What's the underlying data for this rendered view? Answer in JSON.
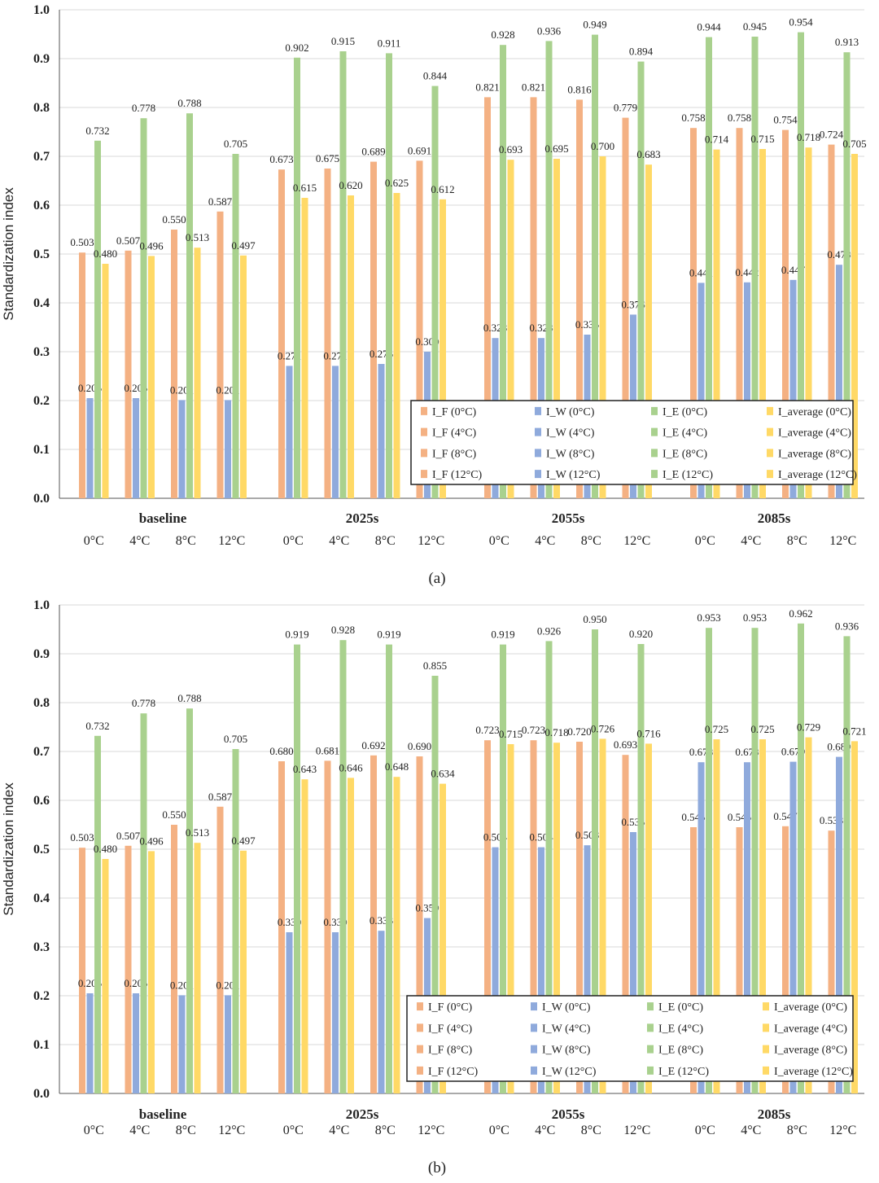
{
  "colors": {
    "I_F": "#F4B183",
    "I_W": "#8FAADC",
    "I_E": "#A9D18E",
    "I_average": "#FFD966",
    "grid": "#d9d9d9",
    "axis": "#555555"
  },
  "legend_labels": [
    [
      "I_F (0°C)",
      "I_W (0°C)",
      "I_E (0°C)",
      "I_average (0°C)"
    ],
    [
      "I_F (4°C)",
      "I_W (4°C)",
      "I_E (4°C)",
      "I_average (4°C)"
    ],
    [
      "I_F (8°C)",
      "I_W (8°C)",
      "I_E (8°C)",
      "I_average (8°C)"
    ],
    [
      "I_F (12°C)",
      "I_W (12°C)",
      "I_E (12°C)",
      "I_average (12°C)"
    ]
  ],
  "chart_data": [
    {
      "type": "bar",
      "caption": "(a)",
      "ylabel": "Standardization index",
      "ylim": [
        0,
        1.0
      ],
      "yticks": [
        "0.0",
        "0.1",
        "0.2",
        "0.3",
        "0.4",
        "0.5",
        "0.6",
        "0.7",
        "0.8",
        "0.9",
        "1.0"
      ],
      "grid": true,
      "legend_position": "bottom-right",
      "groups": [
        "baseline",
        "2025s",
        "2055s",
        "2085s"
      ],
      "temperatures": [
        "0°C",
        "4°C",
        "8°C",
        "12°C"
      ],
      "series": [
        {
          "name": "I_F",
          "values": [
            [
              0.503,
              0.507,
              0.55,
              0.587
            ],
            [
              0.673,
              0.675,
              0.689,
              0.691
            ],
            [
              0.821,
              0.821,
              0.816,
              0.779
            ],
            [
              0.758,
              0.758,
              0.754,
              0.724
            ]
          ]
        },
        {
          "name": "I_W",
          "values": [
            [
              0.205,
              0.205,
              0.201,
              0.201
            ],
            [
              0.271,
              0.271,
              0.275,
              0.3
            ],
            [
              0.328,
              0.328,
              0.335,
              0.376
            ],
            [
              0.441,
              0.442,
              0.447,
              0.478
            ]
          ]
        },
        {
          "name": "I_E",
          "values": [
            [
              0.732,
              0.778,
              0.788,
              0.705
            ],
            [
              0.902,
              0.915,
              0.911,
              0.844
            ],
            [
              0.928,
              0.936,
              0.949,
              0.894
            ],
            [
              0.944,
              0.945,
              0.954,
              0.913
            ]
          ]
        },
        {
          "name": "I_average",
          "values": [
            [
              0.48,
              0.496,
              0.513,
              0.497
            ],
            [
              0.615,
              0.62,
              0.625,
              0.612
            ],
            [
              0.693,
              0.695,
              0.7,
              0.683
            ],
            [
              0.714,
              0.715,
              0.718,
              0.705
            ]
          ]
        }
      ]
    },
    {
      "type": "bar",
      "caption": "(b)",
      "ylabel": "Standardization index",
      "ylim": [
        0,
        1.0
      ],
      "yticks": [
        "0.0",
        "0.1",
        "0.2",
        "0.3",
        "0.4",
        "0.5",
        "0.6",
        "0.7",
        "0.8",
        "0.9",
        "1.0"
      ],
      "grid": true,
      "legend_position": "bottom-right",
      "groups": [
        "baseline",
        "2025s",
        "2055s",
        "2085s"
      ],
      "temperatures": [
        "0°C",
        "4°C",
        "8°C",
        "12°C"
      ],
      "series": [
        {
          "name": "I_F",
          "values": [
            [
              0.503,
              0.507,
              0.55,
              0.587
            ],
            [
              0.68,
              0.681,
              0.692,
              0.69
            ],
            [
              0.723,
              0.723,
              0.72,
              0.693
            ],
            [
              0.545,
              0.545,
              0.547,
              0.538
            ]
          ]
        },
        {
          "name": "I_W",
          "values": [
            [
              0.205,
              0.205,
              0.201,
              0.201
            ],
            [
              0.33,
              0.33,
              0.333,
              0.359
            ],
            [
              0.504,
              0.504,
              0.508,
              0.535
            ],
            [
              0.678,
              0.678,
              0.679,
              0.689
            ]
          ]
        },
        {
          "name": "I_E",
          "values": [
            [
              0.732,
              0.778,
              0.788,
              0.705
            ],
            [
              0.919,
              0.928,
              0.919,
              0.855
            ],
            [
              0.919,
              0.926,
              0.95,
              0.92
            ],
            [
              0.953,
              0.953,
              0.962,
              0.936
            ]
          ]
        },
        {
          "name": "I_average",
          "values": [
            [
              0.48,
              0.496,
              0.513,
              0.497
            ],
            [
              0.643,
              0.646,
              0.648,
              0.634
            ],
            [
              0.715,
              0.718,
              0.726,
              0.716
            ],
            [
              0.725,
              0.725,
              0.729,
              0.721
            ]
          ]
        }
      ]
    }
  ]
}
